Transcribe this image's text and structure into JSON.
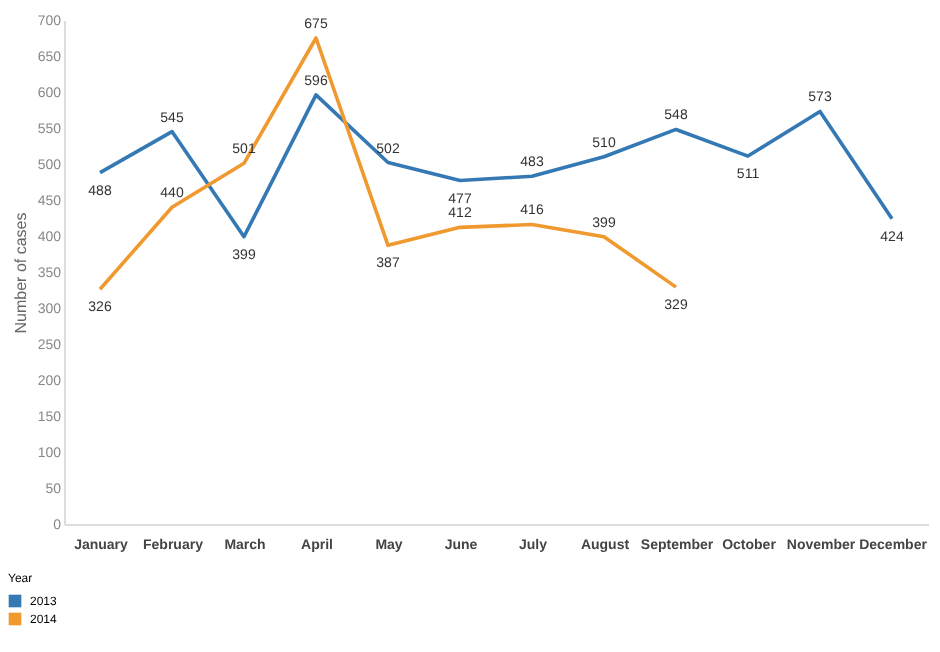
{
  "chart_data": {
    "type": "line",
    "ylabel": "Number of cases",
    "legend_title": "Year",
    "categories": [
      "January",
      "February",
      "March",
      "April",
      "May",
      "June",
      "July",
      "August",
      "September",
      "October",
      "November",
      "December"
    ],
    "series": [
      {
        "name": "2013",
        "color": "#3479b4",
        "values": [
          488,
          545,
          399,
          596,
          502,
          477,
          483,
          510,
          548,
          511,
          573,
          424
        ]
      },
      {
        "name": "2014",
        "color": "#f0992f",
        "values": [
          326,
          440,
          501,
          675,
          387,
          412,
          416,
          399,
          329,
          null,
          null,
          null
        ]
      }
    ],
    "ylim": [
      0,
      700
    ],
    "yticks": [
      0,
      50,
      100,
      150,
      200,
      250,
      300,
      350,
      400,
      450,
      500,
      550,
      600,
      650,
      700
    ],
    "data_labels": true,
    "legend": "bottom left",
    "grid": false
  }
}
